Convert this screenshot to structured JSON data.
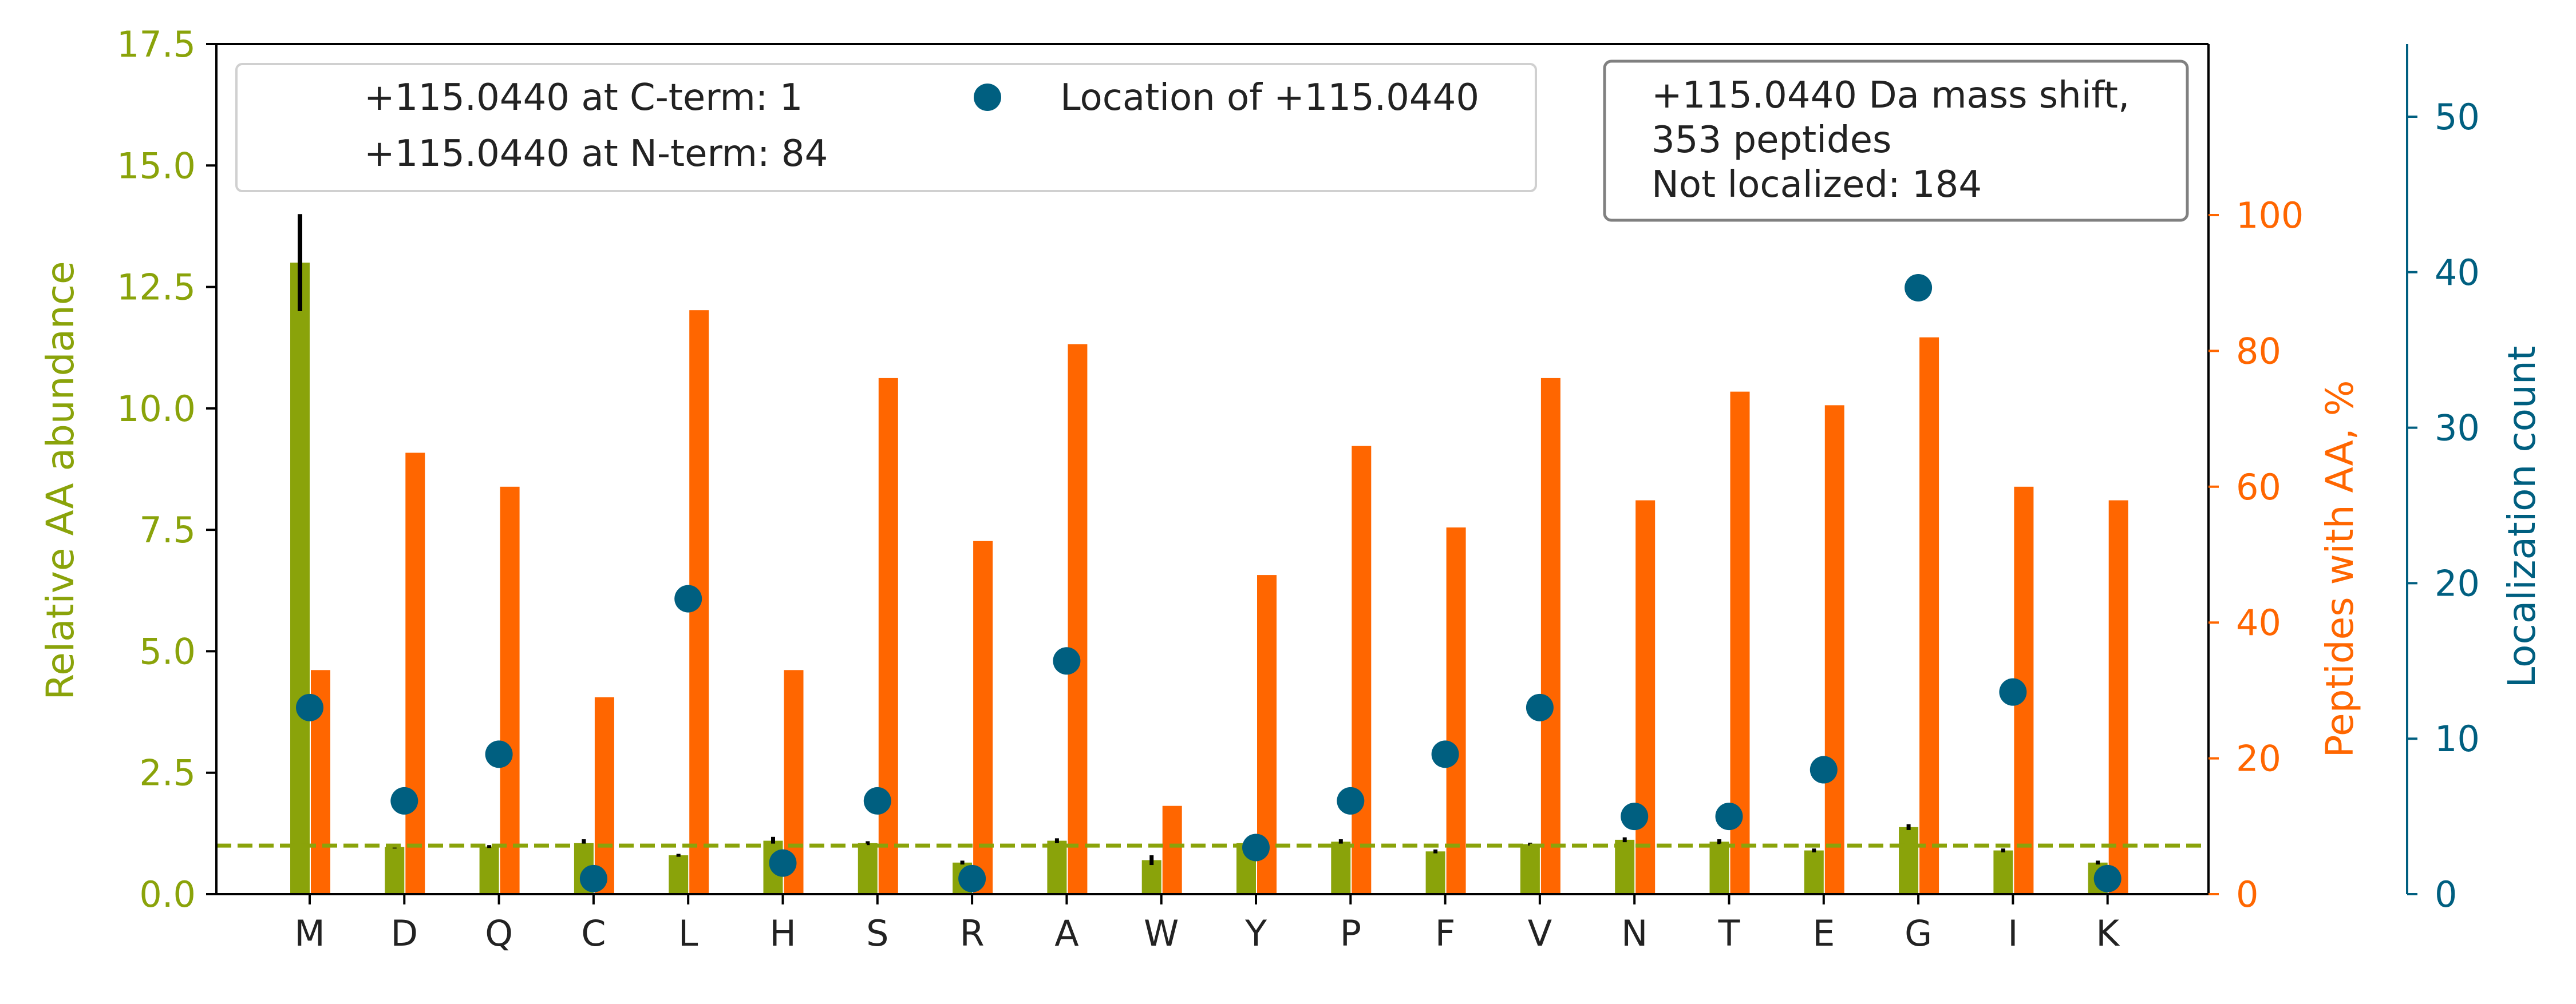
{
  "chart_data": {
    "type": "bar",
    "categories": [
      "M",
      "D",
      "Q",
      "C",
      "L",
      "H",
      "S",
      "R",
      "A",
      "W",
      "Y",
      "P",
      "F",
      "V",
      "N",
      "T",
      "E",
      "G",
      "I",
      "K"
    ],
    "left_axis": {
      "label": "Relative AA abundance",
      "ylim": [
        0,
        17.5
      ],
      "ticks": [
        "0.0",
        "2.5",
        "5.0",
        "7.5",
        "10.0",
        "12.5",
        "15.0",
        "17.5"
      ],
      "color": "#8aa30a"
    },
    "right_axis_1": {
      "label": "Peptides with AA, %",
      "ylim": [
        0,
        100
      ],
      "ticks": [
        "0",
        "20",
        "40",
        "60",
        "80",
        "100"
      ],
      "color": "#ff6600"
    },
    "right_axis_2": {
      "label": "Localization count",
      "ylim": [
        0,
        50
      ],
      "ticks": [
        "0",
        "10",
        "20",
        "30",
        "40",
        "50"
      ],
      "color": "#005f80"
    },
    "series": [
      {
        "name": "Relative AA abundance",
        "axis": "left",
        "values": [
          13.0,
          0.97,
          0.98,
          1.05,
          0.8,
          1.1,
          1.05,
          0.65,
          1.1,
          0.7,
          1.05,
          1.08,
          0.88,
          1.03,
          1.12,
          1.08,
          0.9,
          1.38,
          0.9,
          0.65
        ],
        "errors": [
          1.0,
          0.03,
          0.03,
          0.08,
          0.03,
          0.08,
          0.04,
          0.04,
          0.05,
          0.1,
          0.03,
          0.05,
          0.04,
          0.03,
          0.05,
          0.05,
          0.04,
          0.06,
          0.04,
          0.04
        ],
        "color": "#8aa30a"
      },
      {
        "name": "Peptides with AA, %",
        "axis": "right_1",
        "values": [
          33.0,
          65.0,
          60.0,
          29.0,
          86.0,
          33.0,
          76.0,
          52.0,
          81.0,
          13.0,
          47.0,
          66.0,
          54.0,
          76.0,
          58.0,
          74.0,
          72.0,
          82.0,
          60.0,
          58.0
        ],
        "color": "#ff6600"
      },
      {
        "name": "Location of +115.0440",
        "axis": "right_2",
        "values": [
          12,
          6,
          9,
          1,
          19,
          2,
          6,
          1,
          15,
          null,
          3,
          6,
          9,
          12,
          5,
          5,
          8,
          39,
          13,
          1
        ],
        "color": "#005f80"
      }
    ],
    "reference_line": {
      "value": 1.0,
      "axis": "left",
      "style": "dashed",
      "color": "#8aa30a"
    },
    "legend": {
      "placement": "top-left",
      "entries": [
        "+115.0440 at C-term: 1",
        "+115.0440 at N-term: 84",
        "Location of +115.0440"
      ]
    },
    "info_box": {
      "placement": "top-right",
      "lines": [
        "+115.0440 Da mass shift,",
        "353 peptides",
        "Not localized: 184"
      ]
    },
    "grid": false
  }
}
